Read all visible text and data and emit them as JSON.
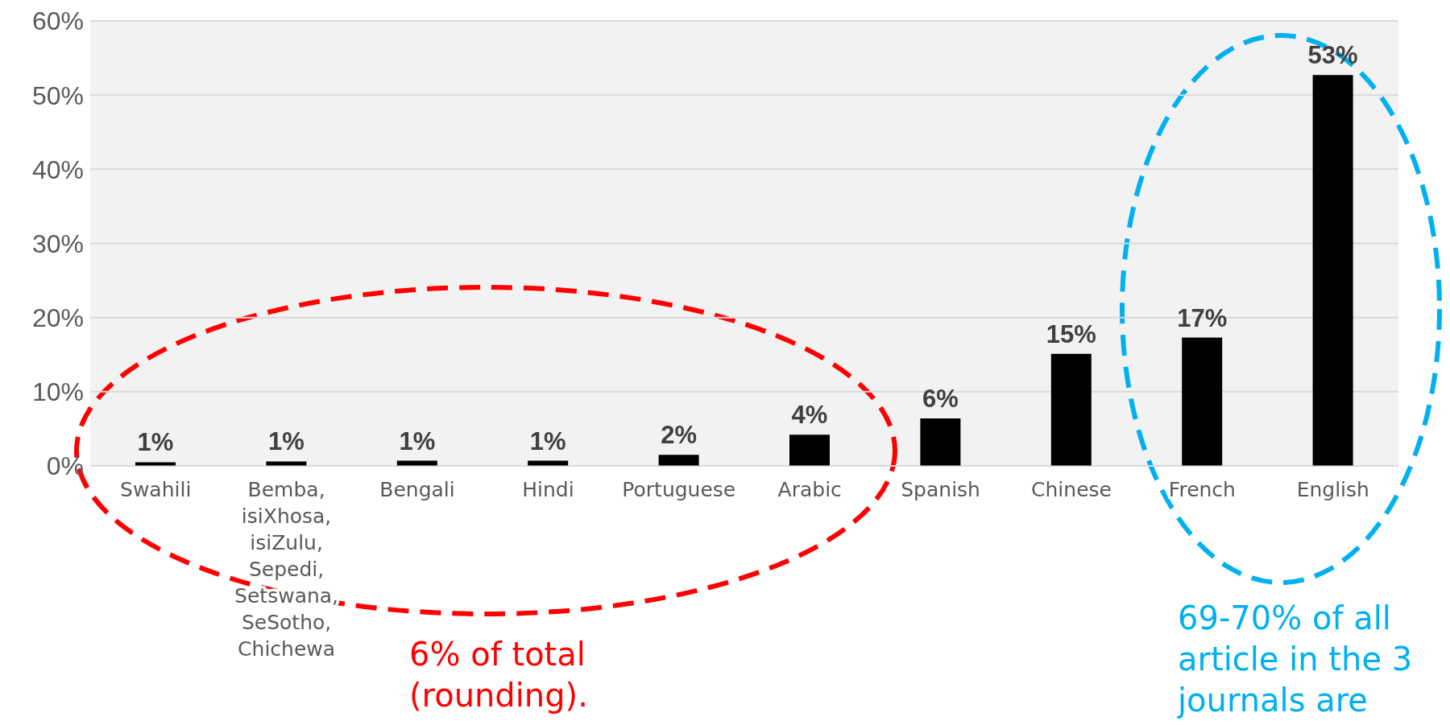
{
  "chart_data": {
    "type": "bar",
    "categories": [
      "Swahili",
      "Bemba, isiXhosa, isiZulu, Sepedi, Setswana, SeSotho, Chichewa",
      "Bengali",
      "Hindi",
      "Portuguese",
      "Arabic",
      "Spanish",
      "Chinese",
      "French",
      "English"
    ],
    "values": [
      0.5,
      0.6,
      0.7,
      0.7,
      1.5,
      4.2,
      6.4,
      15.1,
      17.3,
      52.7
    ],
    "value_labels": [
      "1%",
      "1%",
      "1%",
      "1%",
      "2%",
      "4%",
      "6%",
      "15%",
      "17%",
      "53%"
    ],
    "color": "#000000",
    "ylim": [
      0,
      60
    ],
    "yticks": [
      {
        "value": 0,
        "label": "0%"
      },
      {
        "value": 10,
        "label": "10%"
      },
      {
        "value": 20,
        "label": "20%"
      },
      {
        "value": 30,
        "label": "30%"
      },
      {
        "value": 40,
        "label": "40%"
      },
      {
        "value": 50,
        "label": "50%"
      },
      {
        "value": 60,
        "label": "60%"
      }
    ],
    "grid": "y",
    "annotations": [
      "6% of total (rounding).",
      "69-70% of all article in the 3 journals are"
    ]
  }
}
